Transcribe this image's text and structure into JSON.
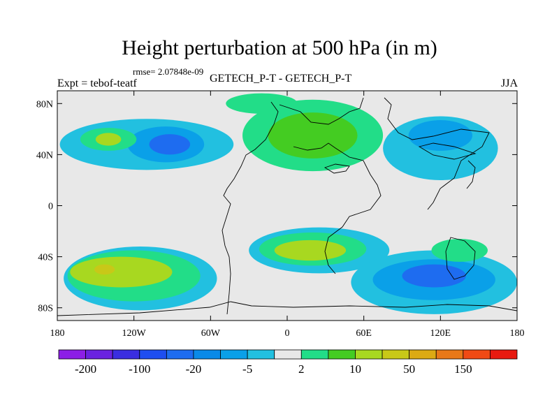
{
  "title": "Height perturbation at 500 hPa (in m)",
  "rmse_text": "rmse= 2.07848e-09",
  "left_label": "Expt = tebof-teatf",
  "center_label": "GETECH_P-T - GETECH_P-T",
  "right_label": "JJA",
  "colors": {
    "background_neutral": "#e8e8e8",
    "ocean_light_green": "#22dd88",
    "green": "#44cc22",
    "yellow_green": "#a8d820",
    "light_blue": "#22c0e0",
    "mid_blue": "#0aa0e8",
    "blue": "#1e6cf0",
    "coast": "#000000"
  },
  "chart_data": {
    "type": "filled-contour-map",
    "projection": "cylindrical-equidistant",
    "xlim": [
      -180,
      180
    ],
    "ylim": [
      -90,
      90
    ],
    "x_ticks": [
      {
        "value": -180,
        "label": "180"
      },
      {
        "value": -120,
        "label": "120W"
      },
      {
        "value": -60,
        "label": "60W"
      },
      {
        "value": 0,
        "label": "0"
      },
      {
        "value": 60,
        "label": "60E"
      },
      {
        "value": 120,
        "label": "120E"
      },
      {
        "value": 180,
        "label": "180"
      }
    ],
    "y_ticks": [
      {
        "value": 80,
        "label": "80N"
      },
      {
        "value": 40,
        "label": "40N"
      },
      {
        "value": 0,
        "label": "0"
      },
      {
        "value": -40,
        "label": "40S"
      },
      {
        "value": -80,
        "label": "80S"
      }
    ],
    "colorbar": {
      "colors": [
        "#8c1ee6",
        "#6a22e0",
        "#3a2ee0",
        "#1e4ef0",
        "#1e6cf0",
        "#0a8ae8",
        "#0aa0e8",
        "#22c0e0",
        "#e8e8e8",
        "#22dd88",
        "#44cc22",
        "#a8d820",
        "#c8c818",
        "#dcaa14",
        "#e87818",
        "#f04a14",
        "#e81a10"
      ],
      "labels": [
        "-200",
        "-100",
        "-20",
        "-5",
        "2",
        "10",
        "50",
        "150"
      ],
      "label_after_box": [
        1,
        3,
        5,
        7,
        9,
        11,
        13,
        15
      ]
    },
    "fields": [
      {
        "name": "south-pacific-anomaly",
        "level": "light_blue",
        "lon": -115,
        "lat": -57,
        "rlon": 60,
        "rlat": 25
      },
      {
        "name": "south-pacific-anomaly-green",
        "level": "ocean_light_green",
        "lon": -120,
        "lat": -55,
        "rlon": 52,
        "rlat": 20
      },
      {
        "name": "south-pacific-anomaly-core",
        "level": "yellow_green",
        "lon": -130,
        "lat": -52,
        "rlon": 40,
        "rlat": 12
      },
      {
        "name": "south-pacific-anomaly-peak",
        "level": "yellow",
        "lon": -143,
        "lat": -50,
        "rlon": 8,
        "rlat": 4
      },
      {
        "name": "north-pacific-blue",
        "level": "light_blue",
        "lon": -110,
        "lat": 48,
        "rlon": 68,
        "rlat": 20
      },
      {
        "name": "north-pacific-mid",
        "level": "mid_blue",
        "lon": -95,
        "lat": 48,
        "rlon": 30,
        "rlat": 14
      },
      {
        "name": "north-pacific-deep",
        "level": "blue",
        "lon": -92,
        "lat": 48,
        "rlon": 16,
        "rlat": 8
      },
      {
        "name": "north-pacific-green",
        "level": "ocean_light_green",
        "lon": -140,
        "lat": 52,
        "rlon": 22,
        "rlat": 9
      },
      {
        "name": "north-pacific-yellow",
        "level": "yellow_green",
        "lon": -140,
        "lat": 52,
        "rlon": 10,
        "rlat": 5
      },
      {
        "name": "africa-anomaly",
        "level": "light_blue",
        "lon": 25,
        "lat": -35,
        "rlon": 55,
        "rlat": 18
      },
      {
        "name": "africa-anomaly-green",
        "level": "ocean_light_green",
        "lon": 20,
        "lat": -34,
        "rlon": 42,
        "rlat": 13
      },
      {
        "name": "africa-anomaly-core",
        "level": "yellow_green",
        "lon": 18,
        "lat": -35,
        "rlon": 28,
        "rlat": 8
      },
      {
        "name": "southern-indian-blue",
        "level": "light_blue",
        "lon": 115,
        "lat": -60,
        "rlon": 65,
        "rlat": 25
      },
      {
        "name": "southern-indian-mid",
        "level": "mid_blue",
        "lon": 115,
        "lat": -58,
        "rlon": 48,
        "rlat": 16
      },
      {
        "name": "southern-indian-deep",
        "level": "blue",
        "lon": 115,
        "lat": -55,
        "rlon": 25,
        "rlat": 9
      },
      {
        "name": "eurasia-green",
        "level": "ocean_light_green",
        "lon": 20,
        "lat": 55,
        "rlon": 55,
        "rlat": 28
      },
      {
        "name": "eurasia-core",
        "level": "green",
        "lon": 20,
        "lat": 55,
        "rlon": 35,
        "rlat": 18
      },
      {
        "name": "arctic-green",
        "level": "ocean_light_green",
        "lon": -20,
        "lat": 80,
        "rlon": 28,
        "rlat": 8
      },
      {
        "name": "siberia-blue",
        "level": "light_blue",
        "lon": 120,
        "lat": 45,
        "rlon": 45,
        "rlat": 25
      },
      {
        "name": "siberia-mid",
        "level": "mid_blue",
        "lon": 120,
        "lat": 55,
        "rlon": 25,
        "rlat": 12
      },
      {
        "name": "australia-green",
        "level": "ocean_light_green",
        "lon": 135,
        "lat": -35,
        "rlon": 22,
        "rlat": 9
      }
    ]
  }
}
